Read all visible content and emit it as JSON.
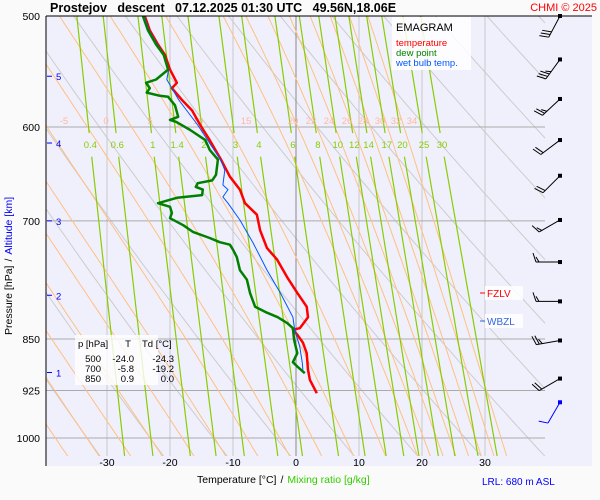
{
  "header": {
    "title": "Prostejov   descent   07.12.2025 01:30 UTC   49.56N,18.06E",
    "copyright": "CHMI © 2025"
  },
  "legend": {
    "title": "EMAGRAM",
    "items": [
      {
        "label": "temperature",
        "color": "#ff0000"
      },
      {
        "label": "dew point",
        "color": "#008000"
      },
      {
        "label": "wet bulb temp.",
        "color": "#0055ff"
      }
    ]
  },
  "table": {
    "headers": [
      "p [hPa]",
      "T",
      "Td [°C]"
    ],
    "rows": [
      [
        "500",
        "-24.0",
        "-24.3"
      ],
      [
        "700",
        "-5.8",
        "-19.2"
      ],
      [
        "850",
        "0.9",
        "0.0"
      ]
    ]
  },
  "levels": {
    "fzlv": {
      "label": "FZLV",
      "color": "#ff0000",
      "pressure": 795
    },
    "wbzl": {
      "label": "WBZL",
      "color": "#3366dd",
      "pressure": 827
    }
  },
  "footer": {
    "lrl": "LRL: 680 m ASL"
  },
  "chart_data": {
    "type": "line",
    "title": "Prostejov descent 07.12.2025 01:30 UTC 49.56N,18.06E",
    "xlabel": "Temperature [°C]",
    "xlabel_sep": "/",
    "xlabel2": "Mixing ratio [g/kg]",
    "ylabel": "Pressure [hPa]",
    "ylabel_sep": "/",
    "ylabel2": "Altitude [km]",
    "xlim": [
      -39.3,
      39.8
    ],
    "ylim": [
      1000,
      500
    ],
    "x_ticks": [
      -30,
      -20,
      -10,
      0,
      10,
      20,
      30
    ],
    "p_ticks": [
      500,
      600,
      700,
      850,
      925,
      1000
    ],
    "altitude_ticks": [
      {
        "km": "5",
        "p": 552
      },
      {
        "km": "4",
        "p": 616
      },
      {
        "km": "3",
        "p": 700
      },
      {
        "km": "2",
        "p": 791
      },
      {
        "km": "1",
        "p": 898
      }
    ],
    "mixing_ratio_labels": [
      "0.4",
      "0.6",
      "1",
      "1.4",
      "2",
      "3",
      "4",
      "6",
      "8",
      "10",
      "12",
      "14",
      "17",
      "20",
      "25",
      "30"
    ],
    "moist_adiabat_labels": [
      "-5",
      "0",
      "5",
      "10",
      "15",
      "20",
      "22",
      "24",
      "26",
      "28",
      "30",
      "32",
      "34"
    ],
    "series": [
      {
        "name": "temperature",
        "color": "#ff0000",
        "points": [
          [
            500,
            -24.0
          ],
          [
            512,
            -23.2
          ],
          [
            524,
            -21.9
          ],
          [
            533,
            -20.8
          ],
          [
            546,
            -20.0
          ],
          [
            558,
            -18.9
          ],
          [
            563,
            -19.7
          ],
          [
            574,
            -18.1
          ],
          [
            584,
            -16.5
          ],
          [
            598,
            -15.2
          ],
          [
            613,
            -13.7
          ],
          [
            633,
            -11.9
          ],
          [
            651,
            -10.5
          ],
          [
            665,
            -8.9
          ],
          [
            680,
            -8.1
          ],
          [
            693,
            -6.2
          ],
          [
            711,
            -5.7
          ],
          [
            732,
            -4.6
          ],
          [
            746,
            -3.0
          ],
          [
            768,
            -1.4
          ],
          [
            788,
            0.2
          ],
          [
            806,
            1.7
          ],
          [
            820,
            1.9
          ],
          [
            835,
            0.6
          ],
          [
            837,
            -0.5
          ],
          [
            844,
            0.2
          ],
          [
            855,
            1.1
          ],
          [
            870,
            1.7
          ],
          [
            894,
            1.9
          ],
          [
            909,
            2.2
          ],
          [
            929,
            3.3
          ]
        ]
      },
      {
        "name": "wet bulb temp.",
        "color": "#0055ff",
        "points": [
          [
            500,
            -24.1
          ],
          [
            512,
            -23.3
          ],
          [
            524,
            -22.0
          ],
          [
            533,
            -20.9
          ],
          [
            546,
            -20.2
          ],
          [
            555,
            -20.5
          ],
          [
            574,
            -18.6
          ],
          [
            598,
            -15.6
          ],
          [
            633,
            -12.0
          ],
          [
            644,
            -11.3
          ],
          [
            660,
            -11.6
          ],
          [
            665,
            -10.8
          ],
          [
            673,
            -11.6
          ],
          [
            680,
            -10.8
          ],
          [
            699,
            -8.9
          ],
          [
            726,
            -6.8
          ],
          [
            759,
            -4.6
          ],
          [
            788,
            -2.5
          ],
          [
            820,
            -0.5
          ],
          [
            837,
            -0.2
          ],
          [
            861,
            0.6
          ],
          [
            884,
            1.0
          ],
          [
            894,
            1.1
          ]
        ]
      },
      {
        "name": "dew point",
        "color": "#008000",
        "points": [
          [
            500,
            -24.3
          ],
          [
            512,
            -23.5
          ],
          [
            524,
            -22.2
          ],
          [
            533,
            -21.0
          ],
          [
            546,
            -20.3
          ],
          [
            555,
            -22.2
          ],
          [
            558,
            -23.8
          ],
          [
            563,
            -23.2
          ],
          [
            567,
            -23.7
          ],
          [
            570,
            -21.6
          ],
          [
            571,
            -20.3
          ],
          [
            579,
            -19.2
          ],
          [
            590,
            -18.7
          ],
          [
            593,
            -20.0
          ],
          [
            595,
            -19.0
          ],
          [
            603,
            -16.8
          ],
          [
            613,
            -14.4
          ],
          [
            623,
            -13.7
          ],
          [
            633,
            -12.4
          ],
          [
            649,
            -12.7
          ],
          [
            655,
            -13.3
          ],
          [
            658,
            -15.6
          ],
          [
            662,
            -15.9
          ],
          [
            665,
            -14.8
          ],
          [
            671,
            -14.9
          ],
          [
            674,
            -18.9
          ],
          [
            680,
            -21.9
          ],
          [
            684,
            -20.0
          ],
          [
            691,
            -19.7
          ],
          [
            697,
            -20.0
          ],
          [
            705,
            -17.9
          ],
          [
            713,
            -16.3
          ],
          [
            720,
            -13.7
          ],
          [
            725,
            -12.1
          ],
          [
            728,
            -10.5
          ],
          [
            734,
            -10.0
          ],
          [
            743,
            -9.4
          ],
          [
            759,
            -8.9
          ],
          [
            771,
            -7.8
          ],
          [
            788,
            -7.3
          ],
          [
            806,
            -6.5
          ],
          [
            814,
            -4.6
          ],
          [
            820,
            -2.9
          ],
          [
            828,
            -1.4
          ],
          [
            835,
            -0.5
          ],
          [
            851,
            -0.3
          ],
          [
            870,
            0.2
          ],
          [
            883,
            -0.5
          ],
          [
            890,
            0.3
          ],
          [
            899,
            1.4
          ]
        ]
      }
    ],
    "wind": [
      {
        "p": 500,
        "dir": 208,
        "kt": 30
      },
      {
        "p": 537,
        "dir": 216,
        "kt": 35
      },
      {
        "p": 573,
        "dir": 227,
        "kt": 25
      },
      {
        "p": 613,
        "dir": 233,
        "kt": 20
      },
      {
        "p": 650,
        "dir": 225,
        "kt": 20
      },
      {
        "p": 699,
        "dir": 240,
        "kt": 15
      },
      {
        "p": 749,
        "dir": 270,
        "kt": 15
      },
      {
        "p": 799,
        "dir": 270,
        "kt": 15
      },
      {
        "p": 852,
        "dir": 260,
        "kt": 25
      },
      {
        "p": 907,
        "dir": 240,
        "kt": 20
      },
      {
        "p": 943,
        "dir": 210,
        "kt": 10
      }
    ]
  }
}
